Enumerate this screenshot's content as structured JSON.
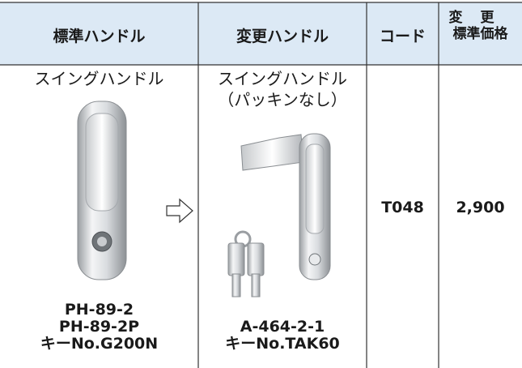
{
  "table": {
    "header": [
      "標準ハンドル",
      "変更ハンドル",
      "コード",
      [
        "変更",
        "標準価格"
      ]
    ],
    "rows": [
      {
        "standard": {
          "name": "スイングハンドル",
          "models": [
            "PH-89-2",
            "PH-89-2P",
            "キーNo.G200N"
          ]
        },
        "changed": {
          "name": [
            "スイングハンドル",
            "（パッキンなし）"
          ],
          "models": [
            "A-464-2-1",
            "キーNo.TAK60"
          ]
        },
        "code": "T048",
        "price": "2,900"
      }
    ]
  }
}
